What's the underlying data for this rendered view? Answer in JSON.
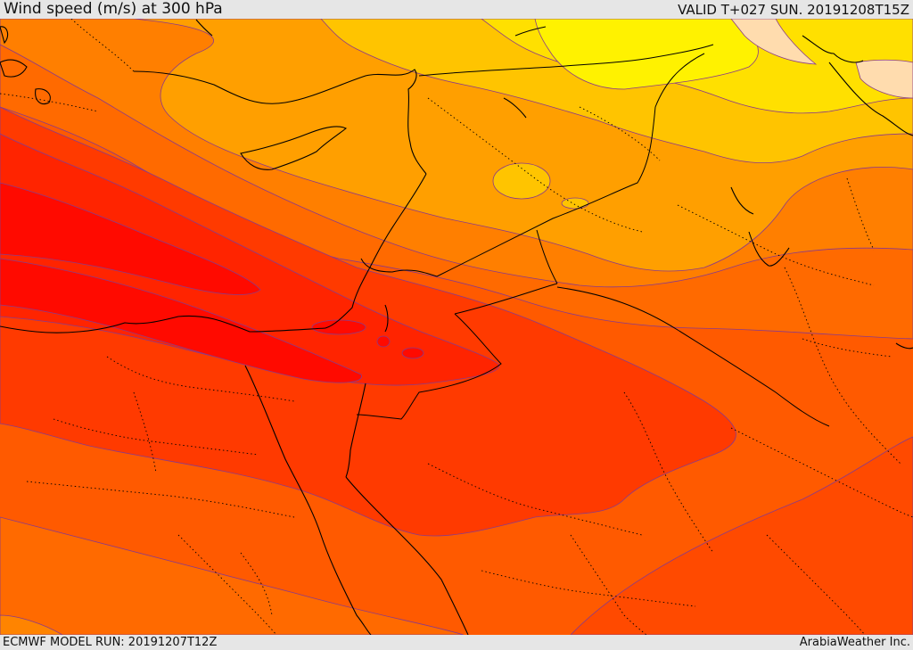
{
  "header": {
    "title": "Wind speed (m/s) at 300 hPa",
    "valid": "VALID T+027 SUN. 20191208T15Z"
  },
  "footer": {
    "model_run": "ECMWF MODEL RUN: 20191207T12Z",
    "credit": "ArabiaWeather Inc."
  },
  "map": {
    "field": "wind speed",
    "level": "300 hPa",
    "palette": [
      "#fff200",
      "#ffe000",
      "#ffc400",
      "#ff9f00",
      "#ff7a00",
      "#ff5600",
      "#ff3a00",
      "#ff2400",
      "#ff0a00"
    ],
    "land_light": "#ffdcae"
  }
}
